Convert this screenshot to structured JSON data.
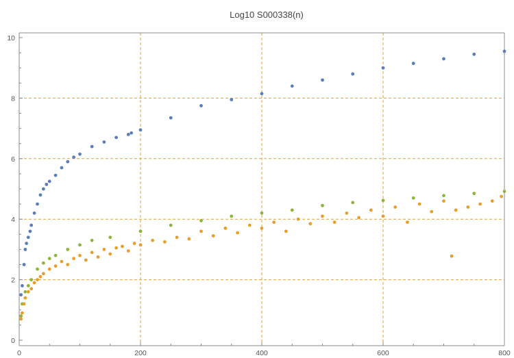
{
  "chart_data": {
    "type": "scatter",
    "title": "Log10 S000338(n)",
    "xlabel": "",
    "ylabel": "",
    "xlim": [
      0,
      800
    ],
    "ylim": [
      0,
      10
    ],
    "x_ticks": [
      0,
      200,
      400,
      600,
      800
    ],
    "y_ticks": [
      0,
      2,
      4,
      6,
      8,
      10
    ],
    "x_gridlines": [
      200,
      400,
      600
    ],
    "y_gridlines": [
      2,
      4,
      6,
      8
    ],
    "grid": true,
    "legend": "none",
    "series": [
      {
        "color": "#5B7DB8",
        "x": [
          3,
          5,
          8,
          10,
          12,
          15,
          18,
          20,
          25,
          30,
          35,
          40,
          45,
          50,
          60,
          70,
          80,
          90,
          100,
          120,
          140,
          160,
          180,
          185,
          200,
          250,
          300,
          350,
          400,
          450,
          500,
          550,
          600,
          650,
          700,
          750,
          800
        ],
        "y": [
          1.5,
          1.8,
          2.5,
          3.0,
          3.2,
          3.4,
          3.6,
          3.8,
          4.2,
          4.5,
          4.8,
          5.0,
          5.15,
          5.25,
          5.45,
          5.7,
          5.9,
          6.05,
          6.15,
          6.4,
          6.55,
          6.7,
          6.8,
          6.85,
          6.95,
          7.35,
          7.75,
          7.95,
          8.15,
          8.4,
          8.6,
          8.8,
          9.0,
          9.15,
          9.3,
          9.45,
          9.55
        ]
      },
      {
        "color": "#8DB43C",
        "x": [
          3,
          5,
          10,
          15,
          20,
          30,
          40,
          50,
          60,
          80,
          100,
          120,
          150,
          200,
          250,
          300,
          350,
          400,
          450,
          500,
          550,
          600,
          650,
          700,
          750,
          800
        ],
        "y": [
          0.8,
          1.2,
          1.6,
          1.8,
          2.0,
          2.35,
          2.55,
          2.7,
          2.8,
          3.0,
          3.15,
          3.3,
          3.4,
          3.6,
          3.8,
          3.95,
          4.1,
          4.2,
          4.3,
          4.45,
          4.55,
          4.62,
          4.7,
          4.78,
          4.85,
          4.92
        ]
      },
      {
        "color": "#E69F2C",
        "x": [
          3,
          5,
          8,
          10,
          15,
          20,
          25,
          30,
          35,
          40,
          50,
          60,
          70,
          80,
          90,
          100,
          110,
          120,
          130,
          140,
          150,
          160,
          170,
          180,
          190,
          200,
          220,
          240,
          260,
          280,
          300,
          320,
          340,
          360,
          380,
          400,
          420,
          440,
          460,
          480,
          500,
          520,
          540,
          560,
          580,
          600,
          620,
          640,
          660,
          680,
          700,
          713,
          720,
          740,
          760,
          780,
          795
        ],
        "y": [
          0.7,
          0.9,
          1.2,
          1.4,
          1.6,
          1.7,
          1.9,
          2.0,
          2.1,
          2.2,
          2.35,
          2.45,
          2.6,
          2.5,
          2.7,
          2.8,
          2.65,
          2.9,
          2.75,
          3.0,
          2.85,
          3.05,
          3.1,
          2.95,
          3.2,
          3.15,
          3.3,
          3.25,
          3.4,
          3.35,
          3.6,
          3.45,
          3.7,
          3.55,
          3.8,
          3.7,
          3.9,
          3.6,
          4.0,
          3.85,
          4.1,
          3.9,
          4.2,
          4.05,
          4.3,
          4.1,
          4.4,
          3.9,
          4.5,
          4.25,
          4.6,
          2.78,
          4.3,
          4.4,
          4.5,
          4.6,
          4.75
        ]
      }
    ]
  }
}
